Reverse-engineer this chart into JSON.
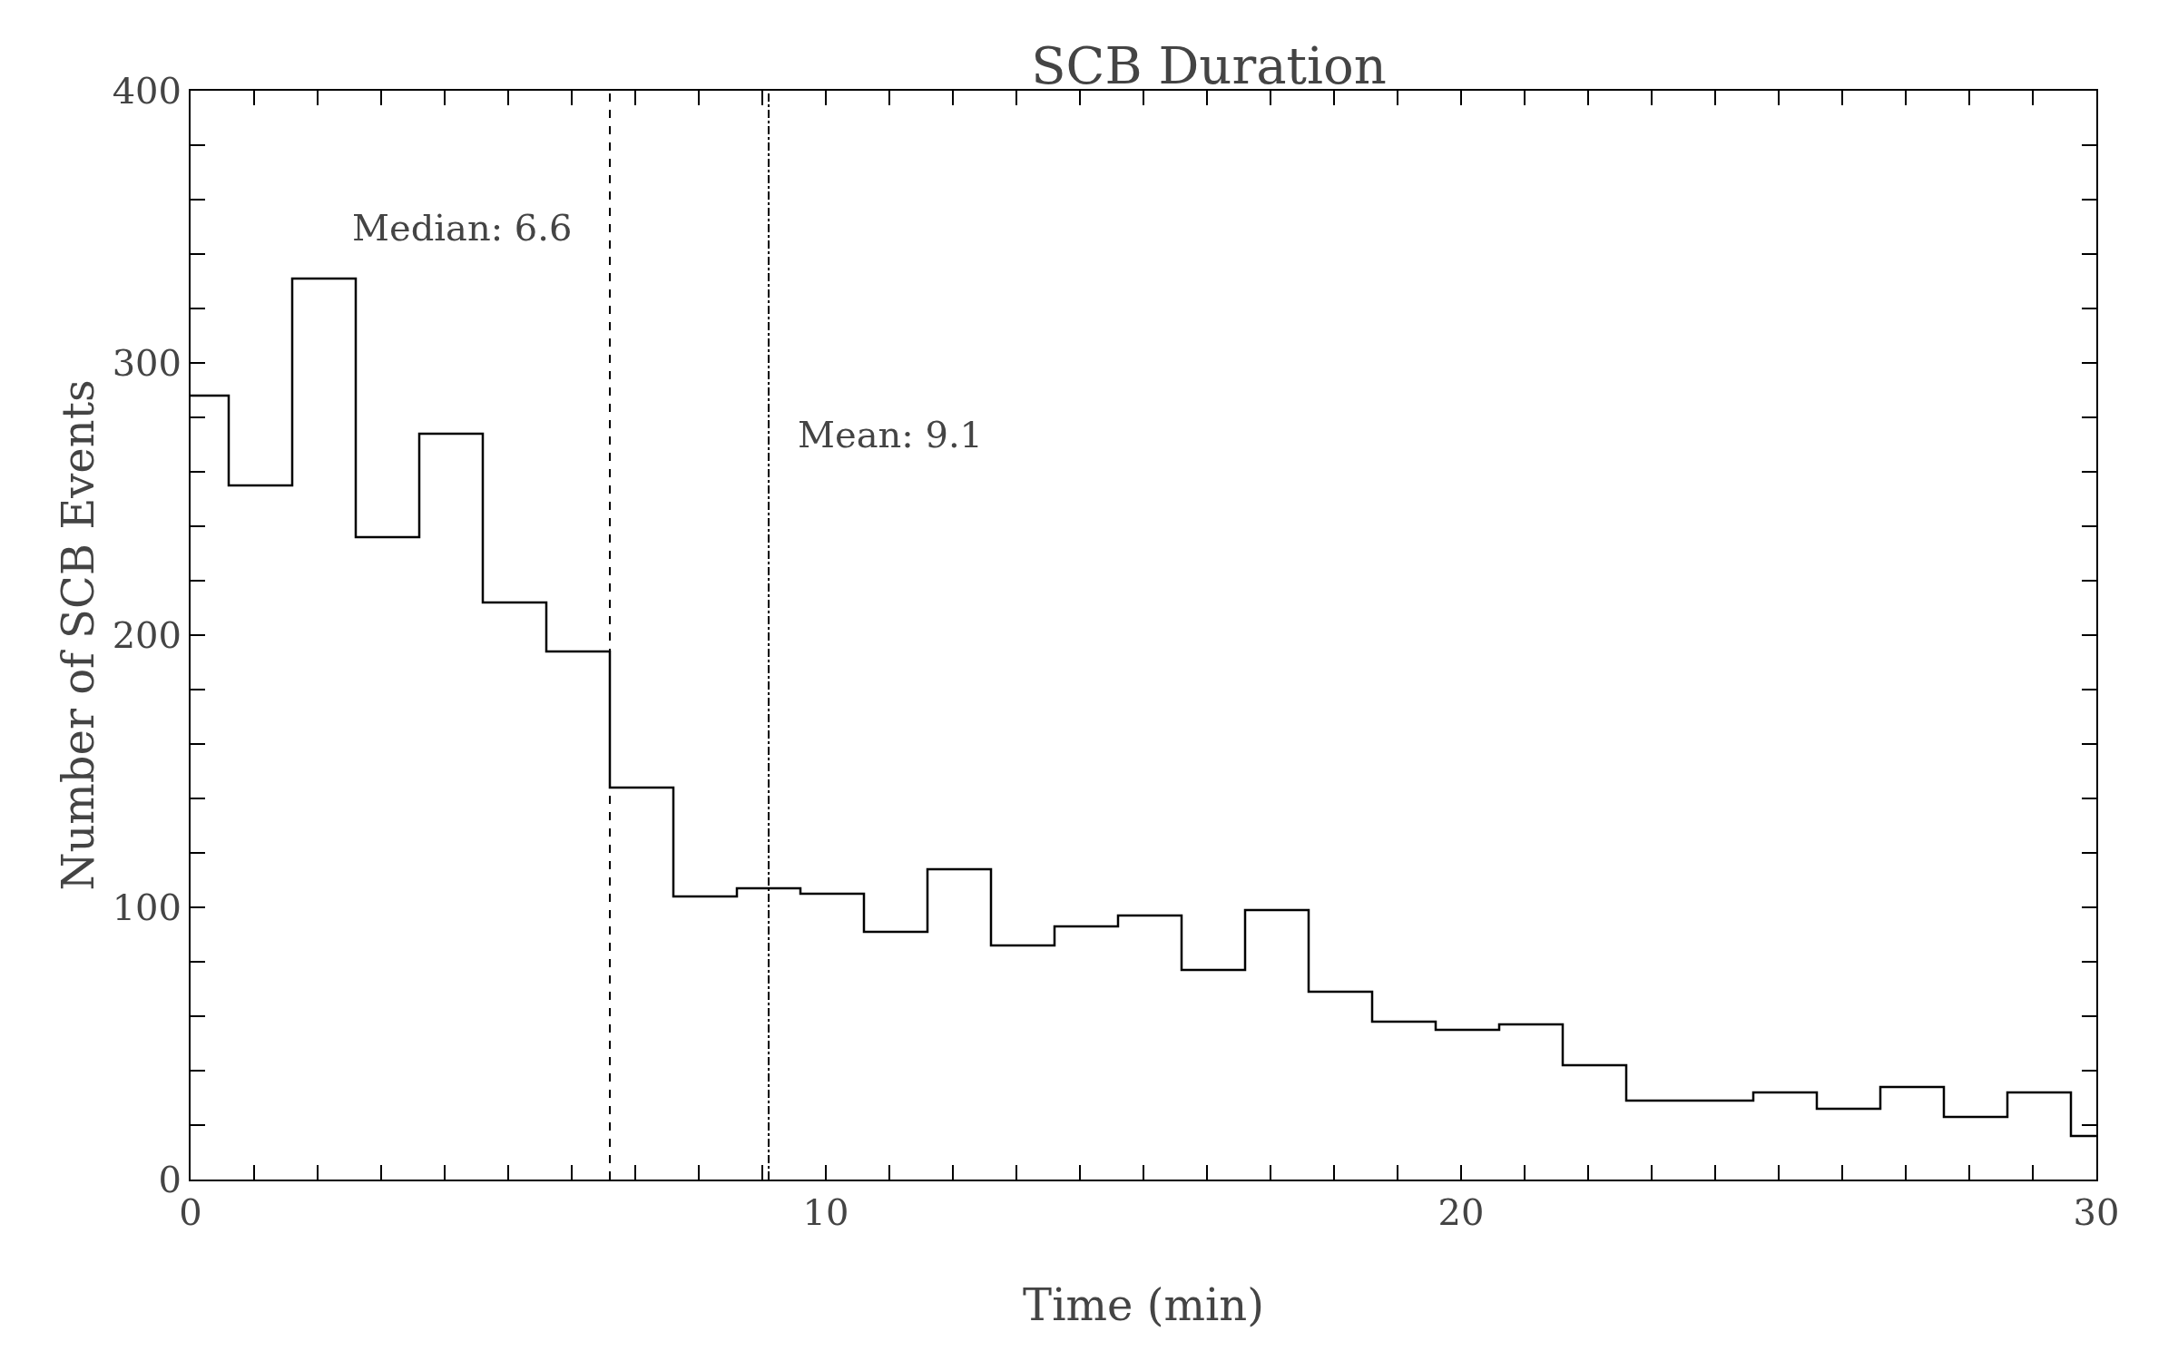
{
  "chart_data": {
    "type": "histogram",
    "title": "SCB Duration",
    "xlabel": "Time (min)",
    "ylabel": "Number of SCB Events",
    "bins": [
      0,
      0.6,
      1.6,
      2.6,
      3.6,
      4.6,
      5.6,
      6.6,
      7.6,
      8.6,
      9.6,
      10.6,
      11.6,
      12.6,
      13.6,
      14.6,
      15.6,
      16.6,
      17.6,
      18.6,
      19.6,
      20.6,
      21.6,
      22.6,
      23.6,
      24.6,
      25.6,
      26.6,
      27.6,
      28.6,
      29.6,
      30
    ],
    "values": [
      288,
      255,
      331,
      236,
      274,
      212,
      194,
      144,
      104,
      107,
      105,
      91,
      114,
      86,
      93,
      97,
      77,
      99,
      69,
      58,
      55,
      57,
      42,
      29,
      29,
      32,
      26,
      34,
      23,
      32,
      16
    ],
    "color": "#000000",
    "xlim": [
      0,
      30
    ],
    "ylim": [
      0,
      400
    ],
    "xticks": [
      0,
      {
        "value": 1,
        "label": null
      },
      {
        "value": 2,
        "label": null
      },
      {
        "value": 3,
        "label": null
      },
      {
        "value": 4,
        "label": null
      },
      {
        "value": 5,
        "label": null
      },
      {
        "value": 6,
        "label": null
      },
      {
        "value": 7,
        "label": null
      },
      {
        "value": 8,
        "label": null
      },
      {
        "value": 9,
        "label": null
      },
      10,
      {
        "value": 11,
        "label": null
      },
      {
        "value": 12,
        "label": null
      },
      {
        "value": 13,
        "label": null
      },
      {
        "value": 14,
        "label": null
      },
      {
        "value": 15,
        "label": null
      },
      {
        "value": 16,
        "label": null
      },
      {
        "value": 17,
        "label": null
      },
      {
        "value": 18,
        "label": null
      },
      {
        "value": 19,
        "label": null
      },
      20,
      {
        "value": 21,
        "label": null
      },
      {
        "value": 22,
        "label": null
      },
      {
        "value": 23,
        "label": null
      },
      {
        "value": 24,
        "label": null
      },
      {
        "value": 25,
        "label": null
      },
      {
        "value": 26,
        "label": null
      },
      {
        "value": 27,
        "label": null
      },
      {
        "value": 28,
        "label": null
      },
      {
        "value": 29,
        "label": null
      },
      30
    ],
    "yticks": [
      0,
      {
        "value": 20,
        "label": null
      },
      {
        "value": 40,
        "label": null
      },
      {
        "value": 60,
        "label": null
      },
      {
        "value": 80,
        "label": null
      },
      100,
      {
        "value": 120,
        "label": null
      },
      {
        "value": 140,
        "label": null
      },
      {
        "value": 160,
        "label": null
      },
      {
        "value": 180,
        "label": null
      },
      200,
      {
        "value": 220,
        "label": null
      },
      {
        "value": 240,
        "label": null
      },
      {
        "value": 260,
        "label": null
      },
      {
        "value": 280,
        "label": null
      },
      300,
      {
        "value": 320,
        "label": null
      },
      {
        "value": 340,
        "label": null
      },
      {
        "value": 360,
        "label": null
      },
      {
        "value": 380,
        "label": null
      },
      400
    ],
    "ref_lines": [
      {
        "axis": "x",
        "value": 6.6,
        "line_style": "dashed",
        "color": "#000000",
        "label": "Median: 6.6"
      },
      {
        "axis": "x",
        "value": 9.1,
        "line_style": "dashdot",
        "color": "#000000",
        "label": "Mean: 9.1"
      }
    ],
    "grid": false
  }
}
